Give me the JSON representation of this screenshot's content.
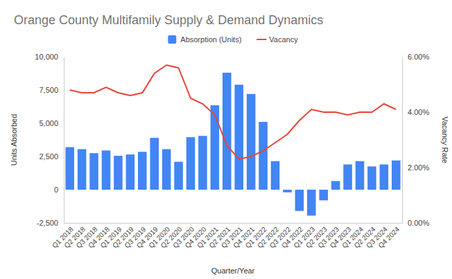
{
  "chart_data": {
    "type": "bar",
    "title": "Orange County Multifamily Supply & Demand Dynamics",
    "x_label": "Quarter/Year",
    "y_label": "Units Absorbed",
    "y2_label": "Vacancy Rate",
    "categories": [
      "Q1 2018",
      "Q2 2018",
      "Q3 2018",
      "Q4 2018",
      "Q1 2019",
      "Q2 2019",
      "Q3 2019",
      "Q4 2019",
      "Q1 2020",
      "Q2 2020",
      "Q3 2020",
      "Q4 2020",
      "Q1 2021",
      "Q2 2021",
      "Q3 2021",
      "Q4 2021",
      "Q1 2022",
      "Q2 2022",
      "Q3 2022",
      "Q4 2022",
      "Q1 2023",
      "Q2 2023",
      "Q3 2023",
      "Q4 2023",
      "Q1 2024",
      "Q2 2024",
      "Q3 2024",
      "Q4 2024"
    ],
    "series": [
      {
        "name": "Absorption (Units)",
        "type": "bar",
        "color": "#4285f4",
        "axis": "y",
        "values": [
          3200,
          3050,
          2750,
          2950,
          2550,
          2650,
          2850,
          3900,
          3050,
          2100,
          3950,
          4050,
          6350,
          8800,
          7900,
          7200,
          5100,
          2150,
          -200,
          -1600,
          -1950,
          -800,
          650,
          1900,
          2150,
          1750,
          1900,
          2200
        ]
      },
      {
        "name": "Vacancy",
        "type": "line",
        "color": "#ea4335",
        "axis": "y2",
        "values": [
          4.8,
          4.7,
          4.7,
          4.9,
          4.7,
          4.6,
          4.7,
          5.4,
          5.7,
          5.6,
          4.5,
          4.3,
          3.9,
          2.8,
          2.3,
          2.4,
          2.6,
          2.9,
          3.2,
          3.7,
          4.1,
          4.0,
          4.0,
          3.9,
          4.0,
          4.0,
          4.3,
          4.1
        ]
      }
    ],
    "ylim": [
      -2500,
      10000
    ],
    "yticks": [
      {
        "value": -2500,
        "label": "-2,500"
      },
      0,
      {
        "value": 2500,
        "label": "2,500"
      },
      {
        "value": 5000,
        "label": "5,000"
      },
      {
        "value": 7500,
        "label": "7,500"
      },
      {
        "value": 10000,
        "label": "10,000"
      }
    ],
    "y2lim": [
      0,
      6
    ],
    "y2ticks": [
      {
        "value": 0,
        "label": "0.00%"
      },
      {
        "value": 2,
        "label": "2.00%"
      },
      {
        "value": 4,
        "label": "4.00%"
      },
      {
        "value": 6,
        "label": "6.00%"
      }
    ],
    "grid": false,
    "legend": "top"
  }
}
